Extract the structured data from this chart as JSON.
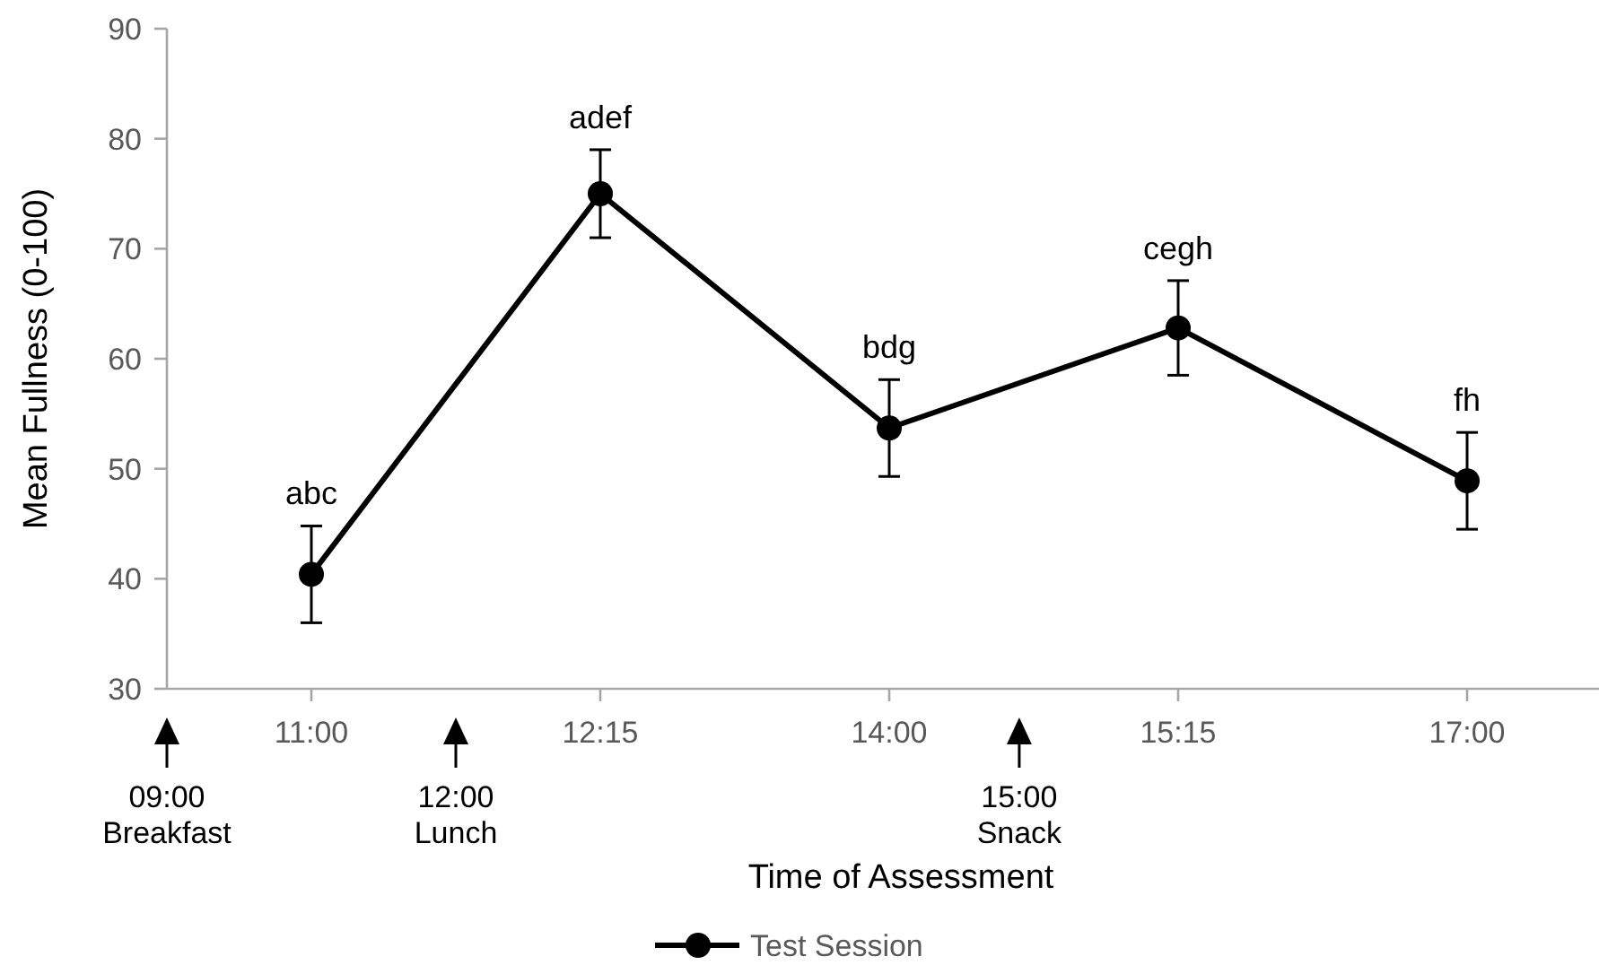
{
  "chart_data": {
    "type": "line",
    "xlabel": "Time of Assessment",
    "ylabel": "Mean Fullness (0-100)",
    "categories": [
      "11:00",
      "12:15",
      "14:00",
      "15:15",
      "17:00"
    ],
    "series": [
      {
        "name": "Test Session",
        "color": "#000000",
        "values": [
          40.4,
          75.0,
          53.7,
          62.8,
          48.9
        ],
        "errors": [
          4.4,
          4.0,
          4.4,
          4.3,
          4.4
        ]
      }
    ],
    "ylim": [
      30,
      90
    ],
    "yticks": [
      30,
      40,
      50,
      60,
      70,
      80,
      90
    ],
    "grid": false,
    "legend": "bottom",
    "marker": "circle",
    "line_style": "solid",
    "annotations": [
      {
        "text": "abc",
        "x": "11:00",
        "y": 40.4
      },
      {
        "text": "adef",
        "x": "12:15",
        "y": 75.0
      },
      {
        "text": "bdg",
        "x": "14:00",
        "y": 53.7
      },
      {
        "text": "cegh",
        "x": "15:15",
        "y": 62.8
      },
      {
        "text": "fh",
        "x": "17:00",
        "y": 48.9
      },
      "09:00\nBreakfast",
      "12:00\nLunch",
      "15:00\nSnack"
    ]
  }
}
